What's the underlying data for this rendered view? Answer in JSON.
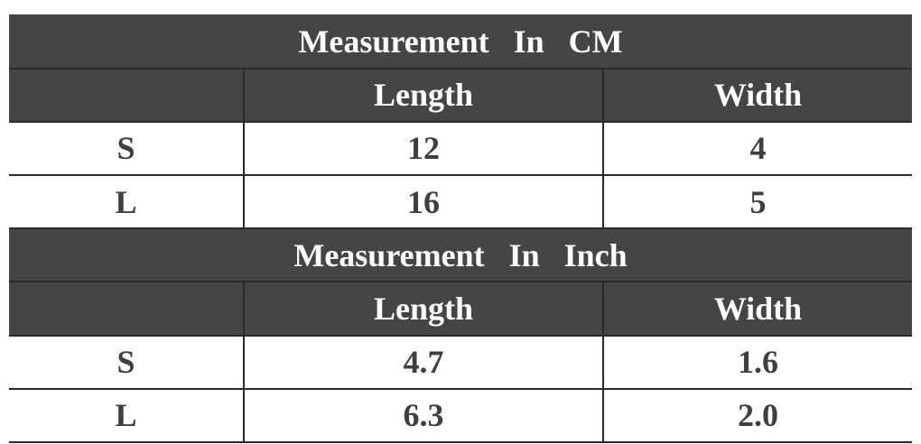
{
  "tables": [
    {
      "title": "Measurement   In   CM",
      "header": {
        "corner": "",
        "length": "Length",
        "width": "Width"
      },
      "rows": [
        {
          "size": "S",
          "length": "12",
          "width": "4"
        },
        {
          "size": "L",
          "length": "16",
          "width": "5"
        }
      ]
    },
    {
      "title": "Measurement   In   Inch",
      "header": {
        "corner": "",
        "length": "Length",
        "width": "Width"
      },
      "rows": [
        {
          "size": "S",
          "length": "4.7",
          "width": "1.6"
        },
        {
          "size": "L",
          "length": "6.3",
          "width": "2.0"
        }
      ]
    }
  ],
  "colors": {
    "header_background": "#454545",
    "header_text": "#ffffff",
    "body_text": "#3f3f3f",
    "border": "#2a2a2a"
  }
}
